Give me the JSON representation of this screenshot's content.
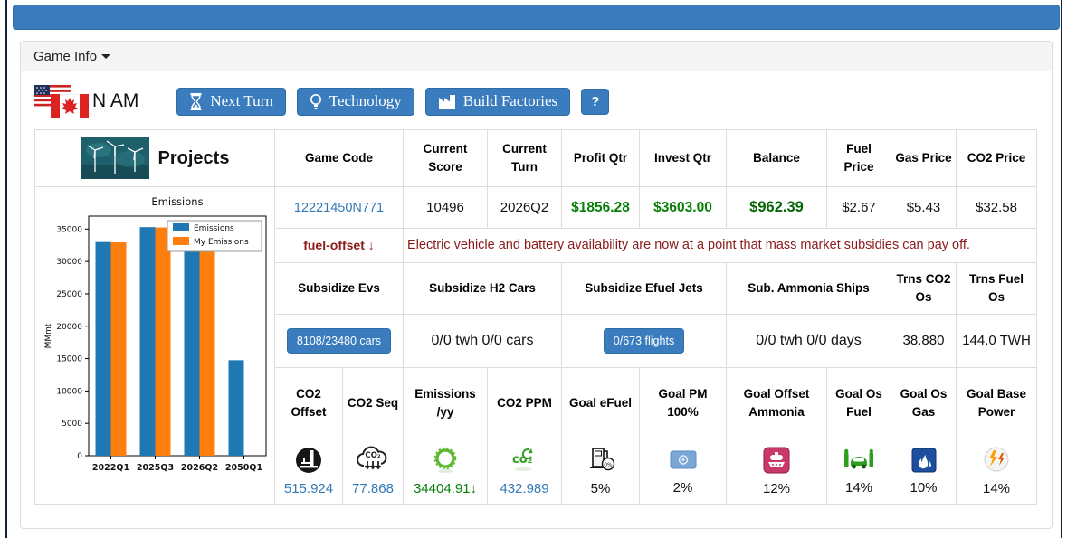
{
  "panel": {
    "header_label": "Game Info"
  },
  "region": {
    "label": "N AM",
    "flags": [
      "us-flag-icon",
      "canada-flag-icon"
    ]
  },
  "toolbar": {
    "next_turn": "Next Turn",
    "technology": "Technology",
    "build_factories": "Build Factories",
    "help": "?",
    "icons": [
      "hourglass-icon",
      "lightbulb-icon",
      "factory-icon",
      "question-icon"
    ],
    "accent_color": "#3a7cbe"
  },
  "projects": {
    "title": "Projects",
    "image": "wind-turbines-thumbnail"
  },
  "stats": {
    "headers": [
      "Game Code",
      "Current Score",
      "Current Turn",
      "Profit Qtr",
      "Invest Qtr",
      "Balance",
      "Fuel Price",
      "Gas Price",
      "CO2 Price"
    ],
    "game_code": "12221450N771",
    "current_score": "10496",
    "current_turn": "2026Q2",
    "profit_qtr": "$1856.28",
    "invest_qtr": "$3603.00",
    "balance": "$962.39",
    "fuel_price": "$2.67",
    "gas_price": "$5.43",
    "co2_price": "$32.58",
    "profit_color": "#078007"
  },
  "alert": {
    "label": "fuel-offset ↓",
    "message": "Electric vehicle and battery availability are now at a point that mass market subsidies can pay off.",
    "color": "#8b1a1a"
  },
  "subsidies": {
    "headers": [
      "Subsidize Evs",
      "Subsidize H2 Cars",
      "Subsidize Efuel Jets",
      "Sub. Ammonia Ships",
      "Trns CO2 Os",
      "Trns Fuel Os"
    ],
    "ev_button": "8108/23480 cars",
    "h2_value": "0/0 twh 0/0 cars",
    "efuel_button": "0/673 flights",
    "ammonia_value": "0/0 twh 0/0 days",
    "trns_co2_os": "38.880",
    "trns_fuel_os": "144.0 TWH"
  },
  "goals": {
    "items": [
      {
        "label": "CO2 Offset",
        "value": "515.924",
        "icon": "co2-offset-icon"
      },
      {
        "label": "CO2 Seq",
        "value": "77.868",
        "icon": "co2-sequestration-icon"
      },
      {
        "label": "Emissions /yy",
        "value": "34404.91↓",
        "icon": "emissions-ring-icon"
      },
      {
        "label": "CO2 PPM",
        "value": "432.989",
        "icon": "co2-ppm-icon"
      },
      {
        "label": "Goal eFuel",
        "value": "5%",
        "icon": "efuel-pump-icon"
      },
      {
        "label": "Goal PM 100%",
        "value": "2%",
        "icon": "un-flag-icon"
      },
      {
        "label": "Goal Offset Ammonia",
        "value": "12%",
        "icon": "ammonia-ship-icon"
      },
      {
        "label": "Goal Os Fuel",
        "value": "14%",
        "icon": "green-car-icon"
      },
      {
        "label": "Goal Os Gas",
        "value": "10%",
        "icon": "gas-flame-icon"
      },
      {
        "label": "Goal Base Power",
        "value": "14%",
        "icon": "power-bolt-icon"
      }
    ]
  },
  "chart_data": {
    "type": "bar",
    "title": "Emissions",
    "xlabel": "",
    "ylabel": "MMmt",
    "categories": [
      "2022Q1",
      "2025Q3",
      "2026Q2",
      "2050Q1"
    ],
    "series": [
      {
        "name": "Emissions",
        "color": "#1f77b4",
        "values": [
          33000,
          35300,
          34405,
          14750
        ]
      },
      {
        "name": "My Emissions",
        "color": "#ff7f0e",
        "values": [
          32950,
          35250,
          34150,
          0
        ]
      }
    ],
    "ylim": [
      0,
      37000
    ],
    "yticks": [
      0,
      5000,
      10000,
      15000,
      20000,
      25000,
      30000,
      35000
    ],
    "grid": false,
    "legend_position": "upper right"
  }
}
